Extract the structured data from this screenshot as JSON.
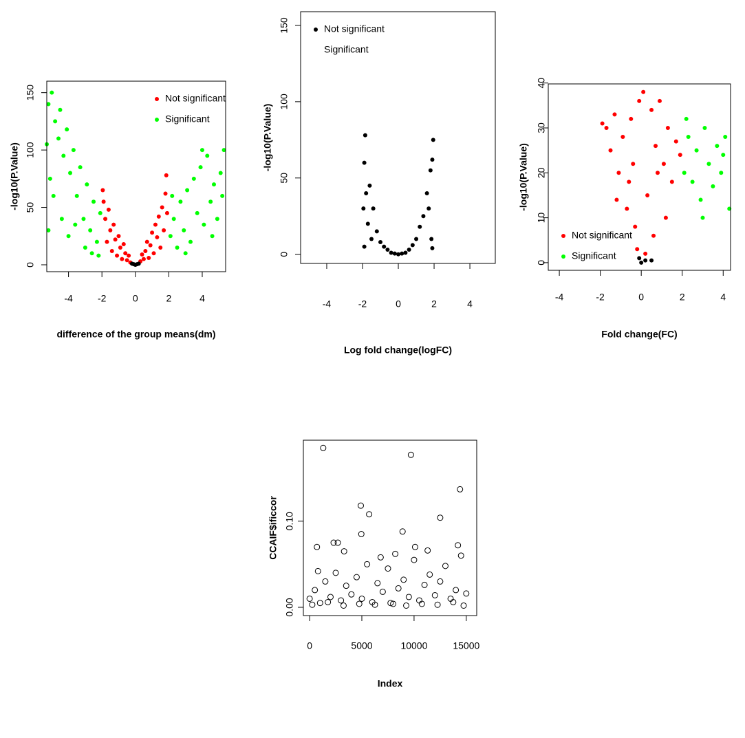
{
  "chart_data": [
    {
      "type": "scatter",
      "xlabel": "difference of the group means(dm)",
      "ylabel": "-log10(P.Value)",
      "xlim": [
        -5.3,
        5.4
      ],
      "ylim": [
        -6,
        160
      ],
      "xticks": [
        -4,
        -2,
        0,
        2,
        4
      ],
      "yticks": [
        0,
        50,
        100,
        150
      ],
      "legend": "top-right",
      "marker": "filled",
      "series": [
        {
          "name": "Not significant",
          "color": "#ff0000",
          "x": [
            -1.9,
            -1.8,
            -1.7,
            -1.6,
            -1.5,
            -1.4,
            -1.3,
            -1.2,
            -1.1,
            -1.0,
            -0.9,
            -0.8,
            -0.7,
            -0.6,
            -0.5,
            -0.4,
            -0.3,
            0.3,
            0.4,
            0.5,
            0.6,
            0.7,
            0.8,
            0.9,
            1.0,
            1.1,
            1.2,
            1.3,
            1.4,
            1.5,
            1.6,
            1.7,
            1.8,
            1.9,
            1.85,
            -1.95
          ],
          "values": [
            55,
            40,
            20,
            48,
            30,
            12,
            35,
            22,
            8,
            25,
            15,
            5,
            18,
            10,
            4,
            8,
            2,
            3,
            9,
            5,
            12,
            20,
            6,
            17,
            28,
            10,
            35,
            24,
            42,
            15,
            50,
            30,
            62,
            45,
            78,
            65
          ]
        },
        {
          "name": "Significant",
          "color": "#00ff00",
          "x": [
            -5.2,
            -5.0,
            -4.8,
            -4.6,
            -4.5,
            -4.3,
            -4.1,
            -3.9,
            -3.7,
            -3.5,
            -3.3,
            -3.1,
            -2.9,
            -2.7,
            -2.5,
            -2.3,
            -2.1,
            -5.2,
            -4.9,
            -4.4,
            -4.0,
            -3.6,
            -3.0,
            -2.6,
            -2.2,
            -5.3,
            -5.1,
            2.1,
            2.3,
            2.5,
            2.7,
            2.9,
            3.1,
            3.3,
            3.5,
            3.7,
            3.9,
            4.1,
            4.3,
            4.5,
            4.7,
            4.9,
            5.1,
            5.3,
            5.2,
            4.0,
            3.0,
            2.2,
            4.6
          ],
          "values": [
            140,
            150,
            125,
            110,
            135,
            95,
            118,
            80,
            100,
            60,
            85,
            40,
            70,
            30,
            55,
            20,
            45,
            30,
            60,
            40,
            25,
            35,
            15,
            10,
            8,
            105,
            75,
            25,
            40,
            15,
            55,
            30,
            65,
            20,
            75,
            45,
            85,
            35,
            95,
            55,
            70,
            40,
            80,
            100,
            60,
            100,
            10,
            60,
            25
          ]
        },
        {
          "color": "#000000",
          "x": [
            -0.2,
            -0.1,
            0,
            0.1,
            0.2
          ],
          "values": [
            1,
            0.5,
            0,
            0.5,
            1
          ]
        }
      ]
    },
    {
      "type": "scatter",
      "xlabel": "Log fold change(logFC)",
      "ylabel": "-log10(P.Value)",
      "xlim": [
        -5.46,
        5.42
      ],
      "ylim": [
        -6,
        159
      ],
      "xticks": [
        -4,
        -2,
        0,
        2,
        4
      ],
      "yticks": [
        0,
        50,
        100,
        150
      ],
      "legend": "top-left",
      "marker": "filled",
      "series": [
        {
          "name": "Not significant",
          "color": "#000000",
          "x": [
            -1.9,
            -1.85,
            -1.8,
            -1.7,
            -1.6,
            -1.5,
            -1.4,
            -1.2,
            -1.0,
            -0.8,
            -0.6,
            -0.4,
            -0.2,
            0,
            0.2,
            0.4,
            0.6,
            0.8,
            1.0,
            1.2,
            1.4,
            1.6,
            1.8,
            1.9,
            1.95,
            1.7,
            -1.95,
            1.85,
            -1.9,
            1.9
          ],
          "values": [
            60,
            78,
            40,
            20,
            45,
            10,
            30,
            15,
            8,
            5,
            3,
            1,
            0.5,
            0,
            0.5,
            1,
            3,
            6,
            10,
            18,
            25,
            40,
            55,
            62,
            75,
            30,
            30,
            10,
            5,
            4
          ]
        },
        {
          "name": "Significant",
          "x": [],
          "values": []
        }
      ]
    },
    {
      "type": "scatter",
      "xlabel": "Fold change(FC)",
      "ylabel": "-log10(P.Value)",
      "xlim": [
        -4.54,
        4.36
      ],
      "ylim": [
        -1.7,
        39.8
      ],
      "xticks": [
        -4,
        -2,
        0,
        2,
        4
      ],
      "yticks": [
        0,
        10,
        20,
        30,
        40
      ],
      "legend": "bottom-left",
      "marker": "filled",
      "series": [
        {
          "name": "Not significant",
          "color": "#ff0000",
          "x": [
            -1.9,
            -1.7,
            -1.5,
            -1.3,
            -1.1,
            -0.9,
            -0.7,
            -0.5,
            -0.3,
            -0.1,
            0.1,
            0.3,
            0.5,
            0.7,
            0.9,
            1.1,
            1.3,
            1.5,
            1.7,
            1.9,
            -0.2,
            0.2,
            -0.6,
            0.6,
            1.2,
            -1.2,
            0.8,
            -0.4
          ],
          "values": [
            31,
            30,
            25,
            33,
            20,
            28,
            12,
            32,
            8,
            36,
            38,
            15,
            34,
            26,
            36,
            22,
            30,
            18,
            27,
            24,
            3,
            2,
            18,
            6,
            10,
            14,
            20,
            22
          ]
        },
        {
          "name": "Significant",
          "color": "#00ff00",
          "x": [
            2.1,
            2.3,
            2.5,
            2.7,
            2.9,
            3.1,
            3.3,
            3.5,
            3.7,
            3.9,
            4.1,
            4.3,
            2.2,
            3.0,
            4.0
          ],
          "values": [
            20,
            28,
            18,
            25,
            14,
            30,
            22,
            17,
            26,
            20,
            28,
            12,
            32,
            10,
            24
          ]
        },
        {
          "color": "#000000",
          "x": [
            0,
            0.2,
            -0.1,
            0.5
          ],
          "values": [
            0,
            0.5,
            1,
            0.5
          ]
        }
      ]
    },
    {
      "type": "scatter",
      "xlabel": "Index",
      "ylabel": "CCAIF$ificcor",
      "xlim": [
        -600,
        16000
      ],
      "ylim": [
        -0.0096,
        0.194
      ],
      "xticks": [
        0,
        5000,
        10000,
        15000
      ],
      "yticks": [
        {
          "value": 0,
          "label": "0.00"
        },
        {
          "value": 0.1,
          "label": "0.10"
        }
      ],
      "marker": "open",
      "series": [
        {
          "color": "#000000",
          "x": [
            1300,
            9700,
            14400,
            4900,
            5700,
            12500,
            8900,
            4950,
            700,
            2300,
            2700,
            10100,
            0,
            500,
            1000,
            1500,
            2000,
            2500,
            3000,
            3500,
            4000,
            4500,
            5000,
            5500,
            6000,
            6500,
            7000,
            7500,
            8000,
            8500,
            9000,
            9500,
            10000,
            10500,
            11000,
            11500,
            12000,
            12500,
            13000,
            13500,
            14000,
            14500,
            15000,
            250,
            1750,
            3250,
            4750,
            6250,
            7750,
            9250,
            10750,
            12250,
            13750,
            14750,
            3300,
            6800,
            11300,
            14200,
            800,
            8200
          ],
          "values": [
            0.185,
            0.177,
            0.137,
            0.118,
            0.108,
            0.104,
            0.088,
            0.085,
            0.07,
            0.075,
            0.075,
            0.07,
            0.01,
            0.02,
            0.005,
            0.03,
            0.012,
            0.04,
            0.008,
            0.025,
            0.015,
            0.035,
            0.01,
            0.05,
            0.006,
            0.028,
            0.018,
            0.045,
            0.004,
            0.022,
            0.032,
            0.012,
            0.055,
            0.008,
            0.026,
            0.038,
            0.014,
            0.03,
            0.048,
            0.01,
            0.02,
            0.06,
            0.016,
            0.003,
            0.006,
            0.002,
            0.004,
            0.003,
            0.005,
            0.002,
            0.004,
            0.003,
            0.006,
            0.002,
            0.065,
            0.058,
            0.066,
            0.072,
            0.042,
            0.062
          ]
        }
      ]
    }
  ]
}
